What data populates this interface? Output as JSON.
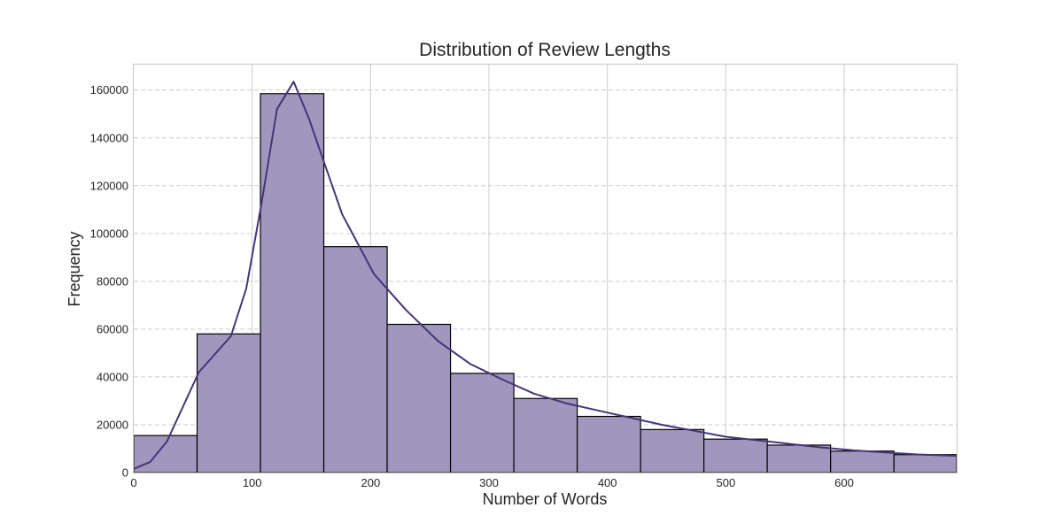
{
  "chart_data": {
    "type": "bar",
    "title": "Distribution of Review Lengths",
    "xlabel": "Number of Words",
    "ylabel": "Frequency",
    "xlim": [
      0,
      695
    ],
    "ylim": [
      0,
      171000
    ],
    "x_ticks": [
      0,
      100,
      200,
      300,
      400,
      500,
      600
    ],
    "y_ticks": [
      0,
      20000,
      40000,
      60000,
      80000,
      100000,
      120000,
      140000,
      160000
    ],
    "grid": true,
    "legend": "none",
    "bin_edges": [
      0,
      53.5,
      107,
      160.5,
      214,
      267.5,
      321,
      374.5,
      428,
      481.5,
      535,
      588.5,
      642,
      695.5
    ],
    "counts": [
      15500,
      58000,
      158500,
      94500,
      62000,
      41500,
      31000,
      23500,
      18000,
      14000,
      11500,
      9000,
      7500
    ],
    "kde": {
      "x": [
        0,
        14,
        28,
        55,
        82,
        95,
        108,
        121,
        135,
        148,
        162,
        176,
        189,
        203,
        230,
        257,
        284,
        311,
        338,
        365,
        392,
        419,
        446,
        473,
        500,
        527,
        554,
        581,
        608,
        635,
        662,
        695
      ],
      "y": [
        1500,
        4500,
        13000,
        42000,
        57000,
        77000,
        113000,
        152000,
        163500,
        148000,
        128000,
        108000,
        96000,
        83000,
        68000,
        55000,
        45500,
        39000,
        33000,
        29000,
        26000,
        23000,
        20000,
        17500,
        15000,
        13500,
        12000,
        10500,
        9300,
        8400,
        7600,
        7000
      ]
    },
    "colors": {
      "bar_fill": "#a196bd",
      "bar_edge": "#000000",
      "kde_line": "#463479"
    }
  }
}
